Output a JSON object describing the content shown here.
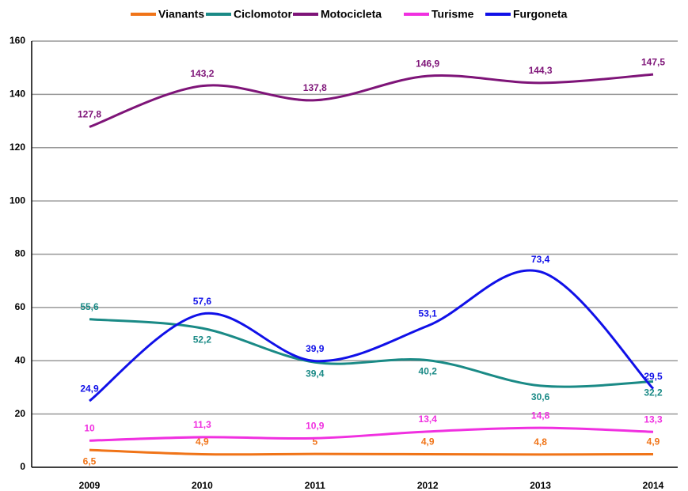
{
  "chart_data": {
    "type": "line",
    "categories": [
      "2009",
      "2010",
      "2011",
      "2012",
      "2013",
      "2014"
    ],
    "series": [
      {
        "name": "Vianants",
        "color": "#f07418",
        "values": [
          6.5,
          4.9,
          5,
          4.9,
          4.8,
          4.9
        ],
        "value_labels": [
          "6,5",
          "4,9",
          "5",
          "4,9",
          "4,8",
          "4,9"
        ]
      },
      {
        "name": "Ciclomotor",
        "color": "#1a8a86",
        "values": [
          55.6,
          52.2,
          39.4,
          40.2,
          30.6,
          32.2
        ],
        "value_labels": [
          "55,6",
          "52,2",
          "39,4",
          "40,2",
          "30,6",
          "32,2"
        ]
      },
      {
        "name": "Motocicleta",
        "color": "#7e1478",
        "values": [
          127.8,
          143.2,
          137.8,
          146.9,
          144.3,
          147.5
        ],
        "value_labels": [
          "127,8",
          "143,2",
          "137,8",
          "146,9",
          "144,3",
          "147,5"
        ]
      },
      {
        "name": "Turisme",
        "color": "#f030e0",
        "values": [
          10,
          11.3,
          10.9,
          13.4,
          14.8,
          13.3
        ],
        "value_labels": [
          "10",
          "11,3",
          "10,9",
          "13,4",
          "14,8",
          "13,3"
        ]
      },
      {
        "name": "Furgoneta",
        "color": "#1010e8",
        "values": [
          24.9,
          57.6,
          39.9,
          53.1,
          73.4,
          29.5
        ],
        "value_labels": [
          "24,9",
          "57,6",
          "39,9",
          "53,1",
          "73,4",
          "29,5"
        ]
      }
    ],
    "ylim": [
      0,
      160
    ],
    "yticks": [
      0,
      20,
      40,
      60,
      80,
      100,
      120,
      140,
      160
    ],
    "grid": true
  }
}
